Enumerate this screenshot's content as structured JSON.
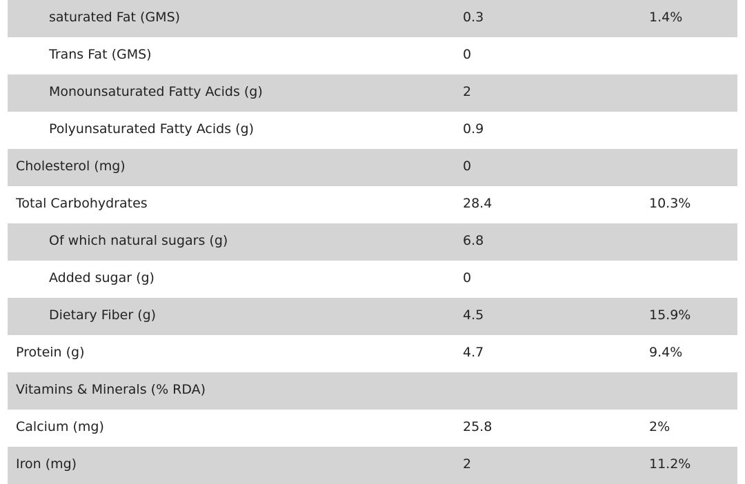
{
  "table": {
    "rows": [
      [
        "saturated Fat (GMS)",
        "0.3",
        "1.4%"
      ],
      [
        "Trans Fat (GMS)",
        "0"
      ],
      [
        "Monounsaturated Fatty Acids (g)",
        "2"
      ],
      [
        "Polyunsaturated Fatty Acids (g)",
        "0.9"
      ],
      [
        "Cholesterol (mg)",
        "0"
      ],
      [
        "Total Carbohydrates",
        "28.4",
        "10.3%"
      ],
      [
        "Of which natural sugars (g)",
        "6.8"
      ],
      [
        "Added sugar (g)",
        "0"
      ],
      [
        "Dietary Fiber (g)",
        "4.5",
        "15.9%"
      ],
      [
        "Protein (g)",
        "4.7",
        "9.4%"
      ],
      [
        "Vitamins & Minerals (% RDA)"
      ],
      [
        "Calcium (mg)",
        "25.8",
        "2%"
      ],
      [
        "Iron (mg)",
        "2",
        "11.2%"
      ]
    ]
  }
}
